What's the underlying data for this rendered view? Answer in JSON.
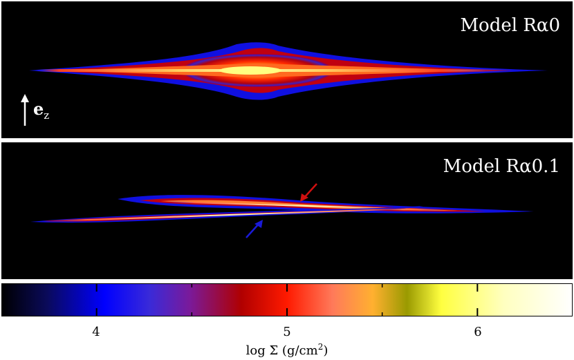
{
  "panels": [
    {
      "model_label": "Model Rα0"
    },
    {
      "model_label": "Model Rα0.1"
    }
  ],
  "axis_vector": {
    "label": "e",
    "subscript": "z"
  },
  "colorbar": {
    "label": "log Σ (g/cm",
    "label_sup": "2",
    "label_end": ")",
    "range": [
      3.5,
      6.5
    ],
    "ticks": [
      "4",
      "5",
      "6"
    ],
    "gradient_colors": [
      "#000000",
      "#0a0a5a",
      "#0000ff",
      "#3a2ad8",
      "#7a1a9a",
      "#b00000",
      "#ff1a00",
      "#ff7a5a",
      "#ffb030",
      "#9a9a00",
      "#ffff40",
      "#ffffc0",
      "#ffffff"
    ]
  },
  "arrows": {
    "upper_color": "#d01010",
    "lower_color": "#1a1ad8"
  }
}
